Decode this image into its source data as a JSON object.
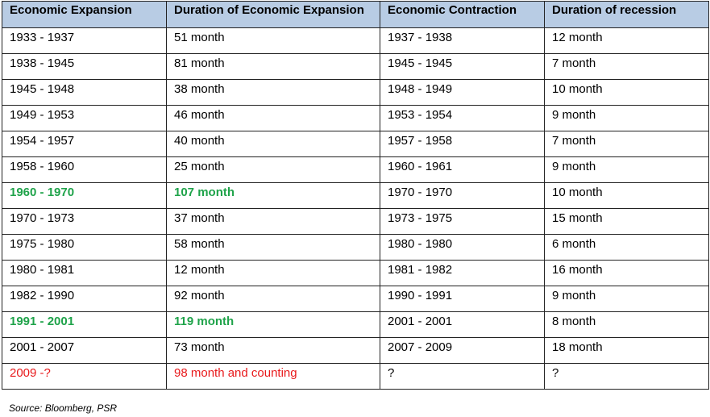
{
  "table": {
    "headers": [
      "Economic Expansion",
      "Duration of Economic Expansion",
      "Economic Contraction",
      "Duration of recession"
    ],
    "rows": [
      {
        "cells": [
          "1933 - 1937",
          "51 month",
          "1937 - 1938",
          "12 month"
        ]
      },
      {
        "cells": [
          "1938 - 1945",
          "81 month",
          "1945 - 1945",
          "7 month"
        ]
      },
      {
        "cells": [
          "1945 - 1948",
          "38 month",
          "1948 - 1949",
          "10 month"
        ]
      },
      {
        "cells": [
          "1949 - 1953",
          "46 month",
          "1953 - 1954",
          "9 month"
        ]
      },
      {
        "cells": [
          "1954 - 1957",
          "40 month",
          "1957 - 1958",
          "7 month"
        ]
      },
      {
        "cells": [
          "1958 - 1960",
          "25 month",
          "1960 - 1961",
          "9 month"
        ]
      },
      {
        "cells": [
          "1960 - 1970",
          "107 month",
          "1970 - 1970",
          "10 month"
        ]
      },
      {
        "cells": [
          "1970 - 1973",
          "37 month",
          "1973 - 1975",
          "15 month"
        ]
      },
      {
        "cells": [
          "1975 - 1980",
          "58 month",
          "1980 - 1980",
          "6 month"
        ]
      },
      {
        "cells": [
          "1980 - 1981",
          "12 month",
          "1981 - 1982",
          "16 month"
        ]
      },
      {
        "cells": [
          "1982 - 1990",
          "92 month",
          "1990 - 1991",
          "9 month"
        ]
      },
      {
        "cells": [
          "1991 - 2001",
          "119 month",
          "2001 - 2001",
          "8 month"
        ]
      },
      {
        "cells": [
          "2001 - 2007",
          "73 month",
          "2007 - 2009",
          "18 month"
        ]
      },
      {
        "cells": [
          "2009 -?",
          "98 month and counting",
          "?",
          "?"
        ]
      }
    ]
  },
  "source_note": "Source: Bloomberg, PSR",
  "colors": {
    "header_background": "#b8cce4",
    "highlight_green": "#1fa34a",
    "current_red": "#e8191b"
  }
}
